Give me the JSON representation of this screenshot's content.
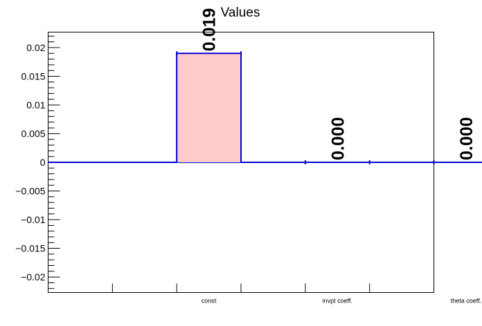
{
  "chart_data": {
    "type": "bar",
    "title": "Values",
    "xlabel": "",
    "ylabel": "",
    "categories": [
      "const",
      "invpt coeff.",
      "theta coeff."
    ],
    "values": [
      0.019,
      0.0,
      0.0
    ],
    "data_labels": [
      "0.019",
      "0.000",
      "0.000"
    ],
    "ylim": [
      -0.0227,
      0.0227
    ],
    "yticks": [
      -0.02,
      -0.015,
      -0.01,
      -0.005,
      0,
      0.005,
      0.01,
      0.015,
      0.02
    ],
    "ytick_labels": [
      "−0.02",
      "−0.015",
      "−0.01",
      "−0.005",
      "0",
      "0.005",
      "0.01",
      "0.015",
      "0.02"
    ],
    "grid": false,
    "colors": {
      "bar_fill": "#ffcccc",
      "bar_edge": "#0000cc",
      "axis": "#000000"
    }
  }
}
